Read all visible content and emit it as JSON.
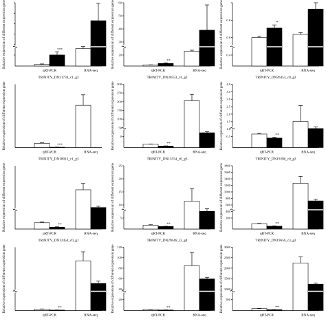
{
  "figure": {
    "ylabel": "Relative expression of different expression gene",
    "categories": [
      "qRT-PCR",
      "RNA-seq"
    ]
  },
  "chart_data": [
    {
      "type": "bar",
      "title": "TRINITY_DN21734_c1_g3",
      "ylabel": "Relative expression of different expression gene",
      "categories": [
        "qRT-PCR",
        "RNA-seq"
      ],
      "ylim": [
        0,
        12
      ],
      "yticks": [
        "",
        "",
        "",
        "",
        "",
        ""
      ],
      "yticks_visible": false,
      "series": [
        {
          "name": "",
          "values": [
            0.3,
            2.1
          ],
          "errors": [
            0.1,
            0.6
          ]
        },
        {
          "name": "",
          "values": [
            3.3,
            8.6
          ],
          "errors": [
            0.4,
            3.3
          ]
        }
      ],
      "annotations": [
        "***"
      ],
      "break": true
    },
    {
      "type": "bar",
      "title": "TRINITY_DN30553_c4_g3",
      "ylabel": "Relative expression of different expression gene",
      "categories": [
        "qRT-PCR",
        "RNA-seq"
      ],
      "ylim": [
        0,
        60
      ],
      "yticks": [
        "60",
        "50",
        "40",
        "30",
        "20"
      ],
      "series": [
        {
          "name": "",
          "values": [
            1,
            2.5
          ],
          "errors": [
            0.2,
            0.5
          ]
        },
        {
          "name": "",
          "values": [
            14,
            34
          ],
          "errors": [
            1,
            24
          ]
        }
      ],
      "annotations": [
        "**"
      ],
      "break": true
    },
    {
      "type": "bar",
      "title": "TRINITY_DN26453_c0_g3",
      "ylabel": "Relative expression of different expression gene",
      "categories": [
        "qRT-PCR",
        "RNA-seq"
      ],
      "ylim": [
        0,
        1
      ],
      "yticks": [
        "",
        "0.8",
        "0.6",
        "0.4"
      ],
      "series": [
        {
          "name": "",
          "values": [
            0.45,
            0.6
          ],
          "errors": [
            0.02,
            0.05
          ]
        },
        {
          "name": "",
          "values": [
            0.5,
            0.9
          ],
          "errors": [
            0.03,
            0.15
          ]
        }
      ],
      "annotations": [
        "*"
      ],
      "break": true
    },
    {
      "type": "bar",
      "title": "TRINITY_DN18013_c1_g3",
      "ylabel": "Relative expression of different expression gene",
      "categories": [
        "qRT-PCR",
        "RNA-seq"
      ],
      "ylim": [
        0,
        60
      ],
      "yticks": [],
      "series": [
        {
          "name": "",
          "values": [
            4,
            0.3
          ],
          "errors": [
            0.5,
            0.1
          ]
        },
        {
          "name": "",
          "values": [
            40,
            0
          ],
          "errors": [
            10,
            0
          ]
        }
      ],
      "annotations": [
        "***"
      ],
      "break": false
    },
    {
      "type": "bar",
      "title": "TRINITY_DN15554_c0_g3",
      "ylabel": "Relative expression of different expression gene",
      "categories": [
        "qRT-PCR",
        "RNA-seq"
      ],
      "ylim": [
        0,
        300
      ],
      "yticks": [
        "300",
        "250",
        "200",
        "150",
        "100",
        "50",
        "0"
      ],
      "series": [
        {
          "name": "",
          "values": [
            16,
            7
          ],
          "errors": [
            1,
            1
          ]
        },
        {
          "name": "",
          "values": [
            222,
            70
          ],
          "errors": [
            30,
            5
          ]
        }
      ],
      "annotations": [
        "**"
      ],
      "break": true
    },
    {
      "type": "bar",
      "title": "TRINITY_DN19286_c0_g2",
      "ylabel": "Relative expression of different expression gene",
      "categories": [
        "qRT-PCR",
        "RNA-seq"
      ],
      "ylim": [
        0,
        4
      ],
      "yticks": [
        "4.0",
        "3.5",
        "3.0",
        "2.5",
        "2.0",
        "1.5",
        "1.0",
        "0.5"
      ],
      "series": [
        {
          "name": "",
          "values": [
            0.85,
            0.6
          ],
          "errors": [
            0.05,
            0.05
          ]
        },
        {
          "name": "",
          "values": [
            1.65,
            1.2
          ],
          "errors": [
            1.0,
            0.1
          ]
        }
      ],
      "annotations": [
        "**"
      ],
      "break": true
    },
    {
      "type": "bar",
      "title": "TRINITY_DN12454_c0_g1",
      "ylabel": "Relative expression of different expression gene",
      "categories": [
        "qRT-PCR",
        "RNA-seq"
      ],
      "ylim": [
        0,
        100
      ],
      "yticks": [],
      "series": [
        {
          "name": "",
          "values": [
            10,
            3
          ],
          "errors": [
            1,
            0.5
          ]
        },
        {
          "name": "",
          "values": [
            62,
            34
          ],
          "errors": [
            10,
            2
          ]
        }
      ],
      "annotations": [
        "**"
      ],
      "break": true
    },
    {
      "type": "bar",
      "title": "TRINITY_DN29646_c2_g4",
      "ylabel": "Relative expression of different expression gene",
      "categories": [
        "qRT-PCR",
        "RNA-seq"
      ],
      "ylim": [
        0,
        25
      ],
      "yticks": [
        "25",
        "20",
        "15",
        "10",
        "5"
      ],
      "series": [
        {
          "name": "",
          "values": [
            1.5,
            1
          ],
          "errors": [
            0.2,
            0.1
          ]
        },
        {
          "name": "",
          "values": [
            11,
            7
          ],
          "errors": [
            5,
            1
          ]
        }
      ],
      "annotations": [
        "**"
      ],
      "break": true
    },
    {
      "type": "bar",
      "title": "TRINITY_DN19656_c3_g2",
      "ylabel": "Relative expression of different expression gene",
      "categories": [
        "qRT-PCR",
        "RNA-seq"
      ],
      "ylim": [
        0,
        1800
      ],
      "yticks": [
        "1800",
        "1600",
        "1400",
        "1200",
        "1000",
        "800",
        "600",
        "400",
        "200"
      ],
      "series": [
        {
          "name": "",
          "values": [
            150,
            80
          ],
          "errors": [
            10,
            10
          ]
        },
        {
          "name": "",
          "values": [
            1300,
            800
          ],
          "errors": [
            200,
            50
          ]
        }
      ],
      "annotations": [
        "**"
      ],
      "break": true
    },
    {
      "type": "bar",
      "title": "",
      "ylabel": "Relative expression of different expression gene",
      "categories": [
        "qRT-PCR",
        "RNA-seq"
      ],
      "ylim": [
        0,
        140
      ],
      "yticks": [],
      "series": [
        {
          "name": "",
          "values": [
            3,
            1
          ],
          "errors": [
            0.5,
            0.2
          ]
        },
        {
          "name": "",
          "values": [
            110,
            60
          ],
          "errors": [
            20,
            5
          ]
        }
      ],
      "annotations": [
        "**"
      ],
      "break": true
    },
    {
      "type": "bar",
      "title": "",
      "ylabel": "Relative expression of different expression gene",
      "categories": [
        "qRT-PCR",
        "RNA-seq"
      ],
      "ylim": [
        0,
        120
      ],
      "yticks": [
        "120",
        "100",
        "80",
        "60",
        "40",
        "20"
      ],
      "series": [
        {
          "name": "",
          "values": [
            2,
            1
          ],
          "errors": [
            0.3,
            0.2
          ]
        },
        {
          "name": "",
          "values": [
            85,
            60
          ],
          "errors": [
            25,
            3
          ]
        }
      ],
      "annotations": [
        "**"
      ],
      "break": true
    },
    {
      "type": "bar",
      "title": "",
      "ylabel": "Relative expression of different expression gene",
      "categories": [
        "qRT-PCR",
        "RNA-seq"
      ],
      "ylim": [
        0,
        3000
      ],
      "yticks": [
        "3000",
        "2500",
        "2000",
        "1500",
        "1000",
        "500"
      ],
      "series": [
        {
          "name": "",
          "values": [
            90,
            40
          ],
          "errors": [
            10,
            5
          ]
        },
        {
          "name": "",
          "values": [
            2250,
            1250
          ],
          "errors": [
            300,
            50
          ]
        }
      ],
      "annotations": [
        "**"
      ],
      "break": true
    }
  ]
}
